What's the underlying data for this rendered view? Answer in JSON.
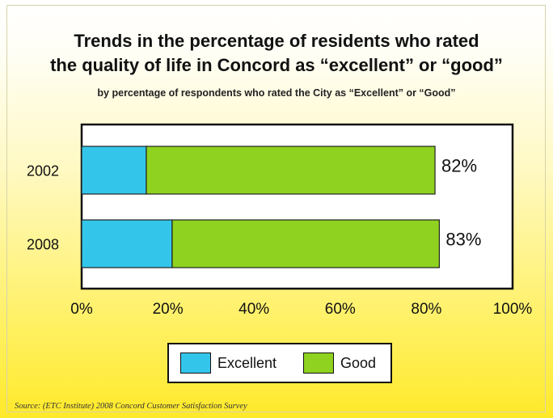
{
  "chart_data": {
    "type": "bar",
    "orientation": "horizontal",
    "stacked": true,
    "title": "Trends in the percentage of residents who rated",
    "title_line2": "the quality of life in Concord as “excellent” or “good”",
    "subtitle": "by percentage of respondents who rated the City as “Excellent” or “Good”",
    "categories": [
      "2002",
      "2008"
    ],
    "series": [
      {
        "name": "Excellent",
        "color": "#33c6ea",
        "values": [
          15,
          21
        ]
      },
      {
        "name": "Good",
        "color": "#8fd21f",
        "values": [
          67,
          62
        ]
      }
    ],
    "totals": [
      82,
      83
    ],
    "data_labels": [
      "82%",
      "83%"
    ],
    "xlim": [
      0,
      100
    ],
    "x_ticks": [
      0,
      20,
      40,
      60,
      80,
      100
    ],
    "x_tick_labels": [
      "0%",
      "20%",
      "40%",
      "60%",
      "80%",
      "100%"
    ],
    "grid": false,
    "legend_position": "bottom"
  },
  "source": "Source:  (ETC Institute) 2008 Concord Customer Satisfaction Survey"
}
